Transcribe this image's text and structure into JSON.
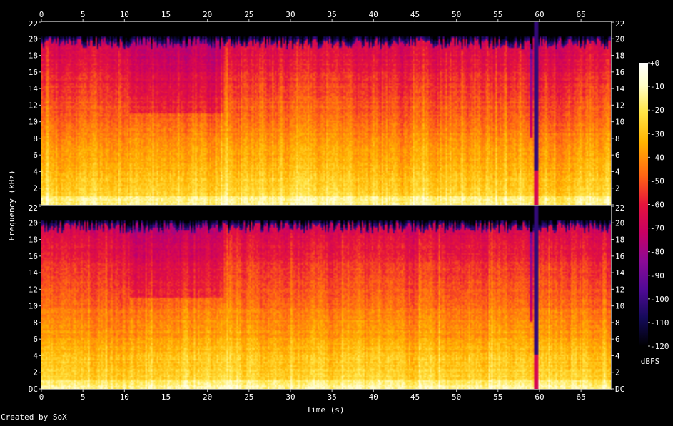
{
  "chart_data": {
    "type": "heatmap",
    "subtype": "spectrogram",
    "channels": 2,
    "xlabel": "Time (s)",
    "ylabel": "Frequency (kHz)",
    "xlim": [
      0,
      68.6
    ],
    "ylim": [
      0,
      22
    ],
    "x_ticks": [
      0,
      5,
      10,
      15,
      20,
      25,
      30,
      35,
      40,
      45,
      50,
      55,
      60,
      65
    ],
    "x_tick_labels": [
      "0",
      "5",
      "10",
      "15",
      "20",
      "25",
      "30",
      "35",
      "40",
      "45",
      "50",
      "55",
      "60",
      "65"
    ],
    "y_ticks": [
      0,
      2,
      4,
      6,
      8,
      10,
      12,
      14,
      16,
      18,
      20,
      22
    ],
    "y_tick_labels_top_channel": [
      "",
      "2",
      "4",
      "6",
      "8",
      "10",
      "12",
      "14",
      "16",
      "18",
      "20",
      "22"
    ],
    "y_tick_labels_bottom_channel": [
      "DC",
      "2",
      "4",
      "6",
      "8",
      "10",
      "12",
      "14",
      "16",
      "18",
      "20",
      "22"
    ],
    "colorbar": {
      "label": "dBFS",
      "range": [
        -120,
        0
      ],
      "ticks": [
        0,
        -10,
        -20,
        -30,
        -40,
        -50,
        -60,
        -70,
        -80,
        -90,
        -100,
        -110,
        -120
      ],
      "tick_labels": [
        "+0",
        "-10",
        "-20",
        "-30",
        "-40",
        "-50",
        "-60",
        "-70",
        "-80",
        "-90",
        "-100",
        "-110",
        "-120"
      ]
    },
    "features": {
      "content_cutoff_khz": 19.5,
      "quiet_region_khz_10_20_s": [
        11,
        22
      ],
      "dropout_time_s": 59.7
    }
  },
  "footer": {
    "credit": "Created by SoX"
  }
}
